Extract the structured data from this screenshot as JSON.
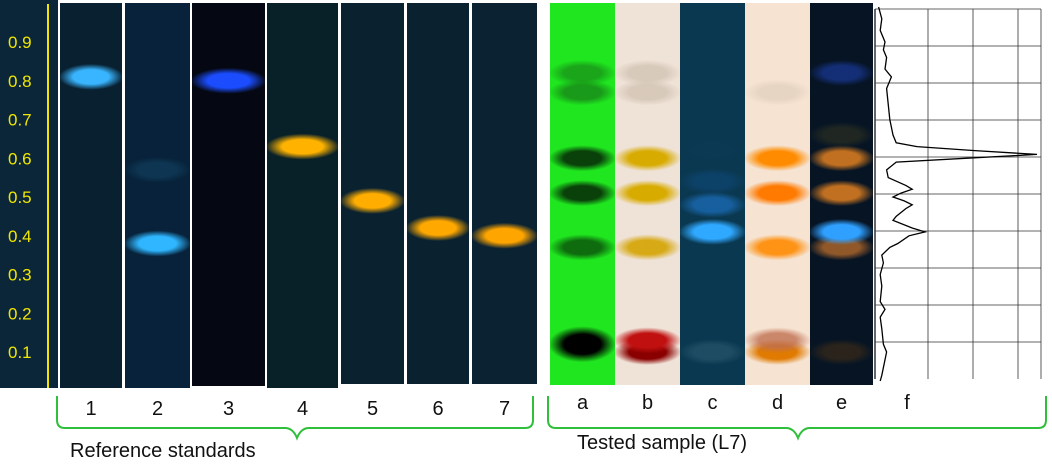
{
  "rf_scale": {
    "ticks": [
      "0.1",
      "0.2",
      "0.3",
      "0.4",
      "0.5",
      "0.6",
      "0.7",
      "0.8",
      "0.9"
    ],
    "axis_color": "#f2e600"
  },
  "reference": {
    "group_label": "Reference standards",
    "lanes": [
      {
        "label": "1",
        "bg": "#082030",
        "bands": [
          {
            "rf": 0.81,
            "color": "#39b5ff",
            "strength": 1.0
          }
        ]
      },
      {
        "label": "2",
        "bg": "#07223a",
        "bands": [
          {
            "rf": 0.38,
            "color": "#2fb6ff",
            "strength": 1.0
          },
          {
            "rf": 0.57,
            "color": "#1a5a80",
            "strength": 0.35
          }
        ]
      },
      {
        "label": "3",
        "bg": "#050812",
        "bands": [
          {
            "rf": 0.8,
            "color": "#1b4dff",
            "strength": 1.0
          }
        ]
      },
      {
        "label": "4",
        "bg": "#082028",
        "bands": [
          {
            "rf": 0.63,
            "color": "#ffb300",
            "strength": 1.0
          }
        ]
      },
      {
        "label": "5",
        "bg": "#0a2230",
        "bands": [
          {
            "rf": 0.49,
            "color": "#ffad00",
            "strength": 1.0
          }
        ]
      },
      {
        "label": "6",
        "bg": "#0a2230",
        "bands": [
          {
            "rf": 0.42,
            "color": "#ffa800",
            "strength": 1.0
          }
        ]
      },
      {
        "label": "7",
        "bg": "#0a2232",
        "bands": [
          {
            "rf": 0.4,
            "color": "#ffa500",
            "strength": 1.0
          }
        ]
      }
    ]
  },
  "sample": {
    "group_label": "Tested sample (L7)",
    "lanes": [
      {
        "label": "a",
        "bg": "#1fe61f",
        "bands": [
          {
            "rf": 0.12,
            "color": "#000000",
            "strength": 1.0
          },
          {
            "rf": 0.37,
            "color": "#0c5e0c",
            "strength": 0.9
          },
          {
            "rf": 0.51,
            "color": "#0a400a",
            "strength": 1.0
          },
          {
            "rf": 0.6,
            "color": "#0a400a",
            "strength": 1.0
          },
          {
            "rf": 0.77,
            "color": "#177a17",
            "strength": 0.7
          },
          {
            "rf": 0.82,
            "color": "#177a17",
            "strength": 0.6
          }
        ]
      },
      {
        "label": "b",
        "bg": "#efe2d6",
        "bands": [
          {
            "rf": 0.1,
            "color": "#8a0000",
            "strength": 1.0
          },
          {
            "rf": 0.13,
            "color": "#c01010",
            "strength": 1.0
          },
          {
            "rf": 0.37,
            "color": "#d4a300",
            "strength": 0.9
          },
          {
            "rf": 0.51,
            "color": "#d8ab00",
            "strength": 1.0
          },
          {
            "rf": 0.6,
            "color": "#d8ab00",
            "strength": 1.0
          },
          {
            "rf": 0.77,
            "color": "#c8b9a8",
            "strength": 0.6
          },
          {
            "rf": 0.82,
            "color": "#c8b9a8",
            "strength": 0.6
          }
        ]
      },
      {
        "label": "c",
        "bg": "#0a3850",
        "bands": [
          {
            "rf": 0.1,
            "color": "#2a5a70",
            "strength": 0.6
          },
          {
            "rf": 0.41,
            "color": "#2fa8ff",
            "strength": 1.0
          },
          {
            "rf": 0.48,
            "color": "#1c70c0",
            "strength": 0.7
          },
          {
            "rf": 0.54,
            "color": "#0e4a80",
            "strength": 0.5
          },
          {
            "rf": 0.62,
            "color": "#0c3a5a",
            "strength": 0.4
          }
        ]
      },
      {
        "label": "d",
        "bg": "#f6e3d2",
        "bands": [
          {
            "rf": 0.1,
            "color": "#e07a00",
            "strength": 1.0
          },
          {
            "rf": 0.13,
            "color": "#c07050",
            "strength": 0.8
          },
          {
            "rf": 0.37,
            "color": "#ff8a00",
            "strength": 0.9
          },
          {
            "rf": 0.51,
            "color": "#ff7a00",
            "strength": 1.0
          },
          {
            "rf": 0.6,
            "color": "#ff8c00",
            "strength": 1.0
          },
          {
            "rf": 0.77,
            "color": "#d8c7b4",
            "strength": 0.5
          }
        ]
      },
      {
        "label": "e",
        "bg": "#061424",
        "bands": [
          {
            "rf": 0.1,
            "color": "#3a2a18",
            "strength": 0.7
          },
          {
            "rf": 0.37,
            "color": "#a0602a",
            "strength": 0.9
          },
          {
            "rf": 0.41,
            "color": "#2fa0ff",
            "strength": 1.0
          },
          {
            "rf": 0.51,
            "color": "#c07020",
            "strength": 1.0
          },
          {
            "rf": 0.6,
            "color": "#c07020",
            "strength": 1.0
          },
          {
            "rf": 0.66,
            "color": "#3a3a20",
            "strength": 0.5
          },
          {
            "rf": 0.82,
            "color": "#1a3a9a",
            "strength": 0.7
          }
        ]
      }
    ],
    "densitogram_label": "f",
    "densitogram_profile": [
      [
        0.0,
        0.02
      ],
      [
        0.04,
        0.03
      ],
      [
        0.08,
        0.05
      ],
      [
        0.1,
        0.06
      ],
      [
        0.12,
        0.04
      ],
      [
        0.16,
        0.03
      ],
      [
        0.19,
        0.02
      ],
      [
        0.21,
        0.05
      ],
      [
        0.23,
        0.02
      ],
      [
        0.27,
        0.03
      ],
      [
        0.3,
        0.02
      ],
      [
        0.33,
        0.04
      ],
      [
        0.35,
        0.03
      ],
      [
        0.37,
        0.08
      ],
      [
        0.38,
        0.13
      ],
      [
        0.4,
        0.2
      ],
      [
        0.41,
        0.3
      ],
      [
        0.42,
        0.22
      ],
      [
        0.44,
        0.1
      ],
      [
        0.45,
        0.12
      ],
      [
        0.47,
        0.18
      ],
      [
        0.48,
        0.22
      ],
      [
        0.49,
        0.17
      ],
      [
        0.5,
        0.1
      ],
      [
        0.51,
        0.15
      ],
      [
        0.52,
        0.22
      ],
      [
        0.53,
        0.18
      ],
      [
        0.55,
        0.07
      ],
      [
        0.57,
        0.06
      ],
      [
        0.59,
        0.12
      ],
      [
        0.6,
        0.55
      ],
      [
        0.61,
        1.0
      ],
      [
        0.62,
        0.6
      ],
      [
        0.63,
        0.25
      ],
      [
        0.64,
        0.12
      ],
      [
        0.66,
        0.1
      ],
      [
        0.7,
        0.08
      ],
      [
        0.74,
        0.07
      ],
      [
        0.78,
        0.06
      ],
      [
        0.81,
        0.09
      ],
      [
        0.83,
        0.05
      ],
      [
        0.86,
        0.06
      ],
      [
        0.88,
        0.04
      ],
      [
        0.9,
        0.05
      ],
      [
        0.93,
        0.02
      ],
      [
        0.96,
        0.03
      ],
      [
        1.0,
        0.01
      ]
    ]
  }
}
